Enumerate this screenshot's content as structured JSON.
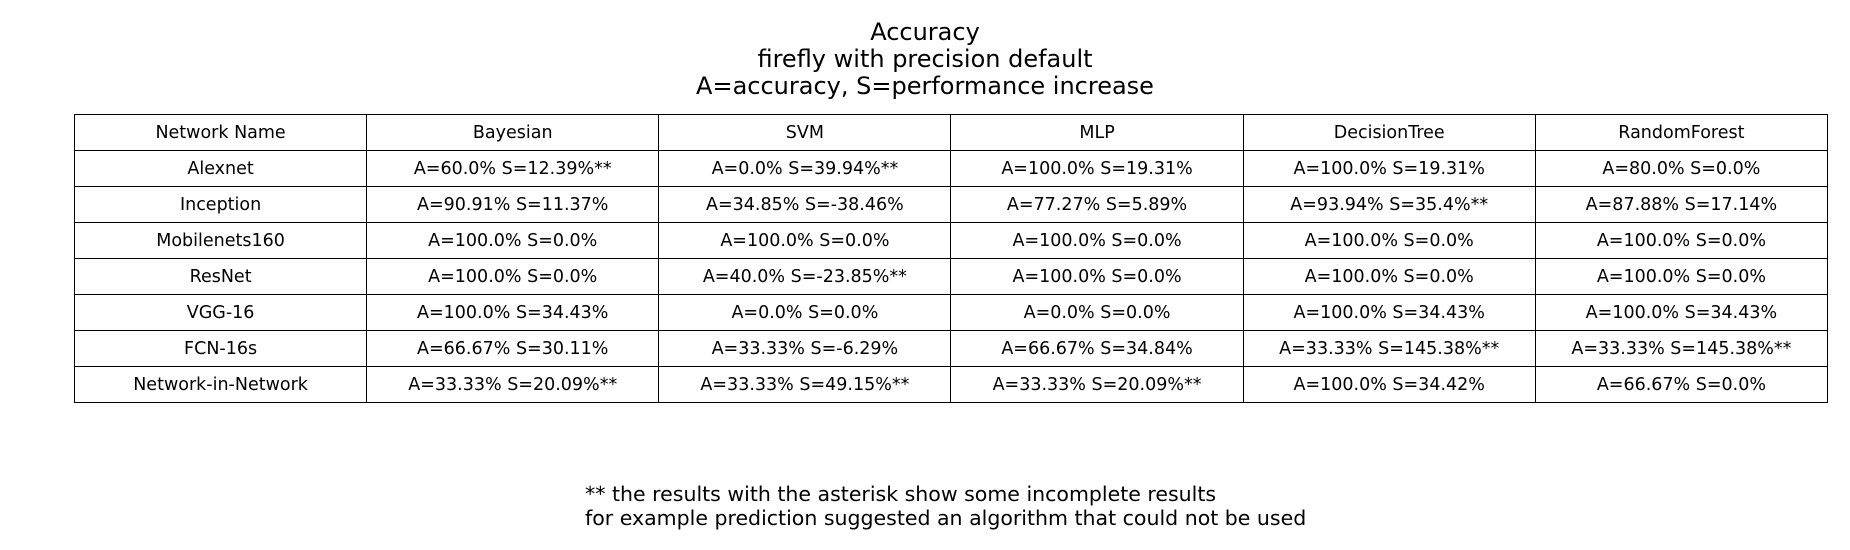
{
  "chart_data": {
    "type": "table",
    "title_lines": [
      "Accuracy",
      "firefly with precision default",
      "A=accuracy, S=performance increase"
    ],
    "columns": [
      "Network Name",
      "Bayesian",
      "SVM",
      "MLP",
      "DecisionTree",
      "RandomForest"
    ],
    "rows": [
      [
        "Alexnet",
        "A=60.0% S=12.39%**",
        "A=0.0% S=39.94%**",
        "A=100.0% S=19.31%",
        "A=100.0% S=19.31%",
        "A=80.0% S=0.0%"
      ],
      [
        "Inception",
        "A=90.91% S=11.37%",
        "A=34.85% S=-38.46%",
        "A=77.27% S=5.89%",
        "A=93.94% S=35.4%**",
        "A=87.88% S=17.14%"
      ],
      [
        "Mobilenets160",
        "A=100.0% S=0.0%",
        "A=100.0% S=0.0%",
        "A=100.0% S=0.0%",
        "A=100.0% S=0.0%",
        "A=100.0% S=0.0%"
      ],
      [
        "ResNet",
        "A=100.0% S=0.0%",
        "A=40.0% S=-23.85%**",
        "A=100.0% S=0.0%",
        "A=100.0% S=0.0%",
        "A=100.0% S=0.0%"
      ],
      [
        "VGG-16",
        "A=100.0% S=34.43%",
        "A=0.0% S=0.0%",
        "A=0.0% S=0.0%",
        "A=100.0% S=34.43%",
        "A=100.0% S=34.43%"
      ],
      [
        "FCN-16s",
        "A=66.67% S=30.11%",
        "A=33.33% S=-6.29%",
        "A=66.67% S=34.84%",
        "A=33.33% S=145.38%**",
        "A=33.33% S=145.38%**"
      ],
      [
        "Network-in-Network",
        "A=33.33% S=20.09%**",
        "A=33.33% S=49.15%**",
        "A=33.33% S=20.09%**",
        "A=100.0% S=34.42%",
        "A=66.67% S=0.0%"
      ]
    ],
    "footnote_lines": [
      "** the results with the asterisk show some incomplete results",
      "for example prediction suggested an algorithm that could not be used"
    ]
  }
}
